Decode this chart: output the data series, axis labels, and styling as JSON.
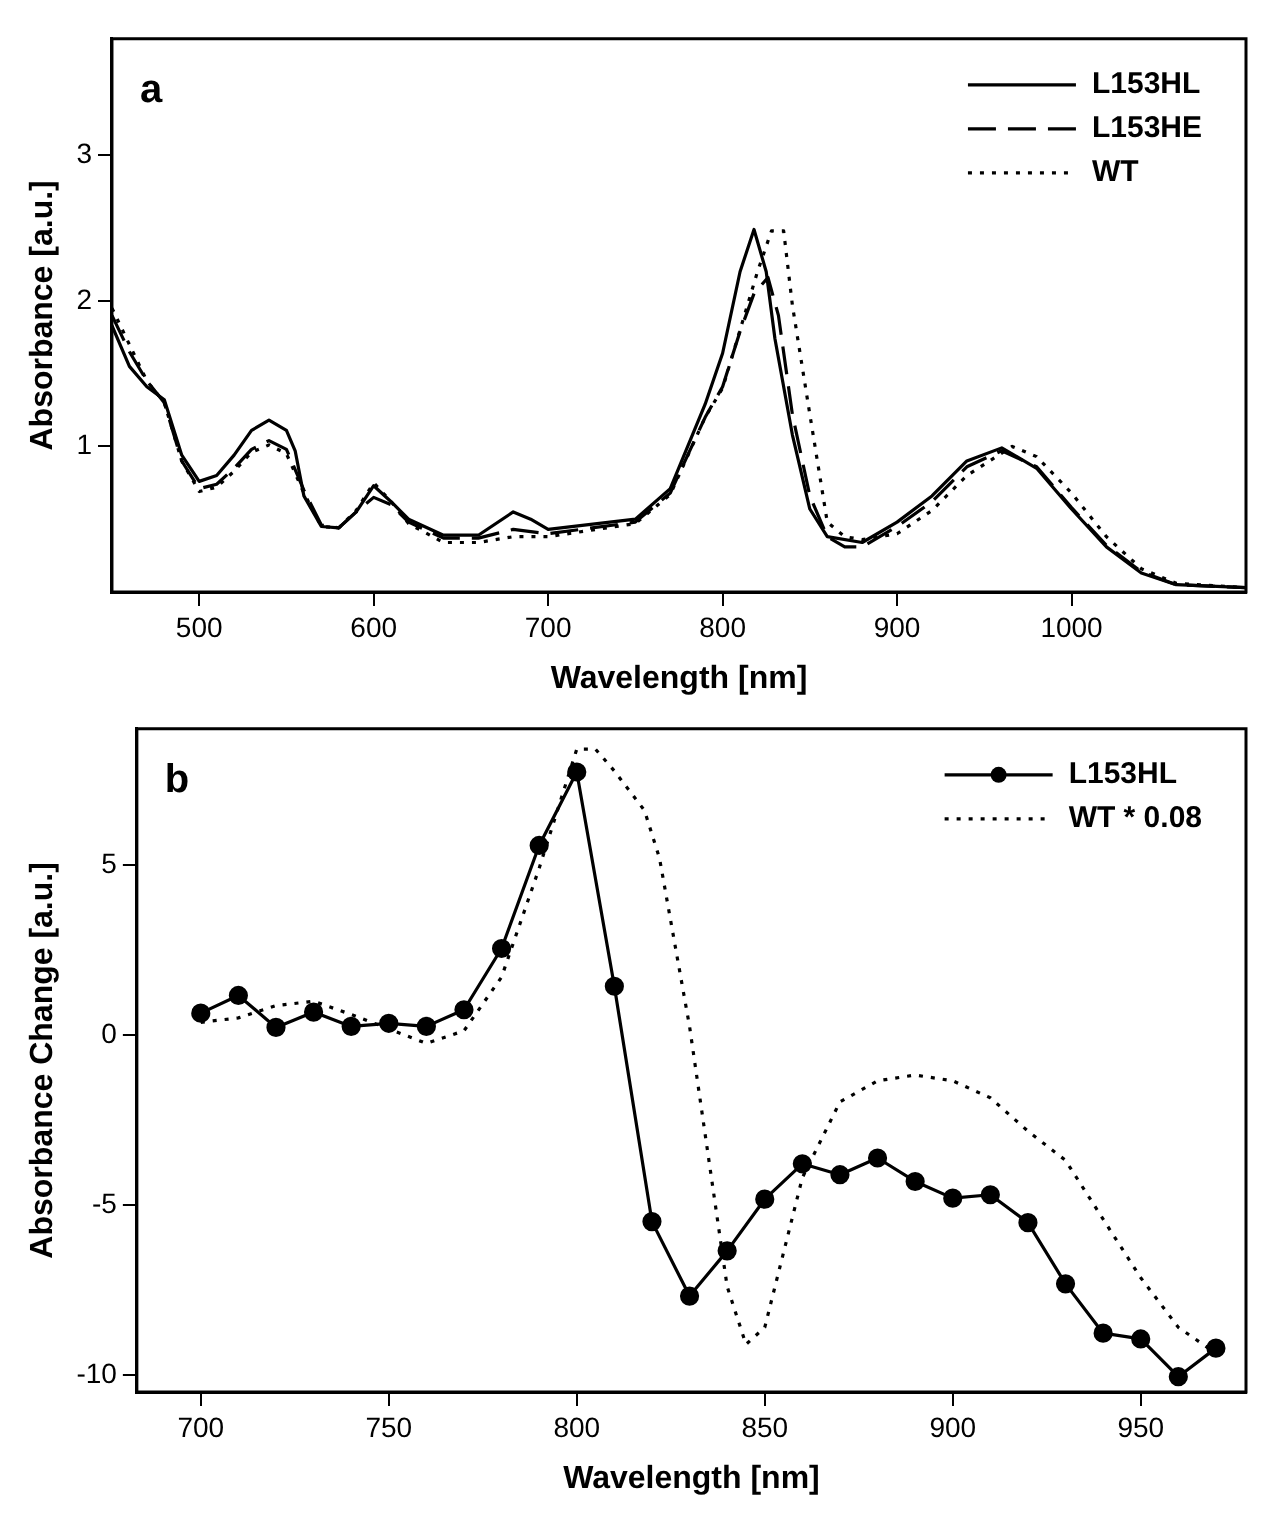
{
  "chart_data": [
    {
      "type": "line",
      "xlabel": "Wavelength [nm]",
      "ylabel": "Absorbance [a.u.]",
      "annotations": [
        "a"
      ],
      "legend": "top right",
      "grid": false,
      "marker": "none",
      "xlim": [
        450,
        1100
      ],
      "xticks": [
        500,
        600,
        700,
        800,
        900,
        1000
      ],
      "ylim": [
        0,
        3.8
      ],
      "yticks": [
        1,
        2,
        3
      ],
      "series": [
        {
          "name": "L153HL",
          "color": "#000000",
          "line_style": "solid",
          "x": [
            450,
            460,
            470,
            480,
            490,
            500,
            510,
            520,
            530,
            540,
            550,
            555,
            560,
            570,
            580,
            590,
            600,
            610,
            620,
            640,
            660,
            680,
            690,
            700,
            750,
            770,
            790,
            800,
            810,
            818,
            825,
            830,
            840,
            850,
            860,
            880,
            900,
            920,
            940,
            960,
            980,
            1000,
            1020,
            1040,
            1060,
            1100
          ],
          "values": [
            1.83,
            1.55,
            1.41,
            1.32,
            0.94,
            0.76,
            0.8,
            0.94,
            1.11,
            1.18,
            1.11,
            0.97,
            0.66,
            0.45,
            0.44,
            0.55,
            0.73,
            0.62,
            0.5,
            0.39,
            0.39,
            0.55,
            0.5,
            0.43,
            0.5,
            0.71,
            1.29,
            1.64,
            2.2,
            2.49,
            2.2,
            1.74,
            1.08,
            0.57,
            0.38,
            0.34,
            0.48,
            0.66,
            0.9,
            0.99,
            0.85,
            0.57,
            0.31,
            0.13,
            0.05,
            0.03
          ]
        },
        {
          "name": "L153HE",
          "color": "#000000",
          "line_style": "dashed",
          "x": [
            450,
            460,
            470,
            480,
            490,
            500,
            510,
            520,
            530,
            540,
            550,
            560,
            570,
            580,
            590,
            600,
            610,
            620,
            640,
            660,
            680,
            700,
            750,
            770,
            790,
            800,
            810,
            818,
            826,
            832,
            840,
            850,
            860,
            870,
            880,
            900,
            920,
            940,
            960,
            980,
            1000,
            1020,
            1040,
            1060,
            1100
          ],
          "values": [
            1.9,
            1.65,
            1.45,
            1.3,
            0.9,
            0.71,
            0.74,
            0.85,
            0.98,
            1.04,
            0.98,
            0.7,
            0.46,
            0.44,
            0.55,
            0.65,
            0.6,
            0.48,
            0.37,
            0.37,
            0.43,
            0.4,
            0.48,
            0.68,
            1.2,
            1.41,
            1.79,
            2.05,
            2.16,
            1.9,
            1.22,
            0.66,
            0.38,
            0.31,
            0.31,
            0.45,
            0.62,
            0.86,
            0.97,
            0.86,
            0.58,
            0.32,
            0.14,
            0.05,
            0.03
          ]
        },
        {
          "name": "WT",
          "color": "#000000",
          "line_style": "dotted",
          "x": [
            450,
            460,
            470,
            480,
            490,
            500,
            510,
            520,
            530,
            540,
            550,
            560,
            570,
            580,
            590,
            600,
            610,
            620,
            640,
            660,
            680,
            700,
            750,
            770,
            790,
            800,
            810,
            820,
            828,
            835,
            840,
            850,
            860,
            870,
            880,
            900,
            920,
            940,
            966,
            980,
            1000,
            1020,
            1040,
            1060,
            1100
          ],
          "values": [
            1.95,
            1.7,
            1.45,
            1.3,
            0.9,
            0.69,
            0.72,
            0.83,
            0.96,
            1.01,
            0.95,
            0.68,
            0.45,
            0.44,
            0.56,
            0.75,
            0.62,
            0.47,
            0.34,
            0.34,
            0.38,
            0.38,
            0.47,
            0.67,
            1.2,
            1.4,
            1.8,
            2.2,
            2.48,
            2.48,
            1.97,
            1.22,
            0.48,
            0.38,
            0.36,
            0.4,
            0.56,
            0.8,
            1.0,
            0.93,
            0.68,
            0.38,
            0.16,
            0.06,
            0.03
          ]
        }
      ]
    },
    {
      "type": "line",
      "xlabel": "Wavelength [nm]",
      "ylabel": "Absorbance Change [a.u.]",
      "annotations": [
        "b"
      ],
      "legend": "top right",
      "grid": false,
      "xlim": [
        683,
        978
      ],
      "xticks": [
        700,
        750,
        800,
        850,
        900,
        950
      ],
      "ylim": [
        -10.5,
        9
      ],
      "yticks": [
        -10,
        -5,
        0,
        5
      ],
      "series": [
        {
          "name": "L153HL",
          "color": "#000000",
          "line_style": "solid",
          "marker": "circle",
          "x": [
            700,
            710,
            720,
            730,
            740,
            750,
            760,
            770,
            780,
            790,
            800,
            810,
            820,
            830,
            840,
            850,
            860,
            870,
            880,
            890,
            900,
            910,
            920,
            930,
            940,
            950,
            960,
            970
          ],
          "values": [
            0.64,
            1.16,
            0.22,
            0.67,
            0.25,
            0.34,
            0.25,
            0.74,
            2.54,
            5.57,
            7.73,
            1.43,
            -5.49,
            -7.68,
            -6.35,
            -4.83,
            -3.79,
            -4.11,
            -3.62,
            -4.31,
            -4.8,
            -4.7,
            -5.52,
            -7.32,
            -8.77,
            -8.94,
            -10.05,
            -9.21
          ]
        },
        {
          "name": "WT * 0.08",
          "color": "#000000",
          "line_style": "dotted",
          "marker": "none",
          "x": [
            700,
            710,
            720,
            730,
            740,
            760,
            770,
            780,
            790,
            800,
            805,
            810,
            818,
            822,
            830,
            840,
            845,
            850,
            860,
            870,
            880,
            890,
            900,
            910,
            920,
            930,
            940,
            950,
            960,
            970
          ],
          "values": [
            0.37,
            0.5,
            0.86,
            0.99,
            0.6,
            -0.25,
            0.12,
            1.7,
            4.9,
            8.4,
            8.4,
            7.76,
            6.6,
            5.2,
            0.25,
            -7.4,
            -9.1,
            -8.6,
            -4.2,
            -1.97,
            -1.35,
            -1.18,
            -1.35,
            -1.85,
            -2.83,
            -3.69,
            -5.42,
            -7.14,
            -8.6,
            -9.36
          ]
        }
      ]
    }
  ]
}
